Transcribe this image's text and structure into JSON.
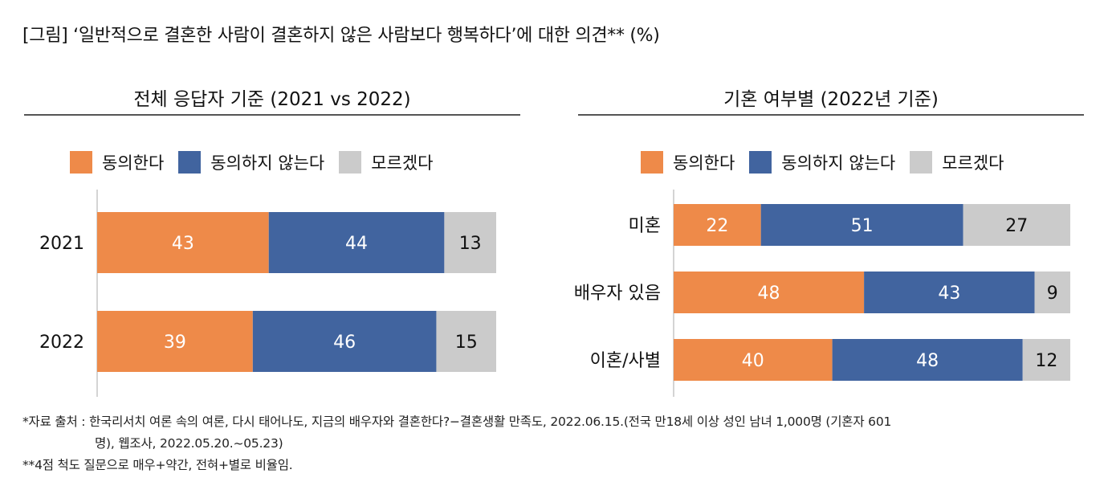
{
  "title": "[그림] ‘일반적으로 결혼한 사람이 결혼하지 않은 사람보다 행복하다’에 대한 의견** (%)",
  "colors": {
    "agree": "#EE8A49",
    "disagree": "#41649F",
    "unknown": "#CBCBCB"
  },
  "legend": [
    "동의한다",
    "동의하지 않는다",
    "모르겠다"
  ],
  "chart_data": [
    {
      "type": "bar",
      "orientation": "horizontal",
      "stacked": true,
      "title": "전체 응답자 기준 (2021 vs 2022)",
      "categories": [
        "2021",
        "2022"
      ],
      "series": [
        {
          "name": "동의한다",
          "values": [
            43,
            39
          ]
        },
        {
          "name": "동의하지 않는다",
          "values": [
            44,
            46
          ]
        },
        {
          "name": "모르겠다",
          "values": [
            13,
            15
          ]
        }
      ],
      "xlim": [
        0,
        100
      ],
      "unit": "%"
    },
    {
      "type": "bar",
      "orientation": "horizontal",
      "stacked": true,
      "title": "기혼 여부별 (2022년 기준)",
      "categories": [
        "미혼",
        "배우자 있음",
        "이혼/사별"
      ],
      "series": [
        {
          "name": "동의한다",
          "values": [
            22,
            48,
            40
          ]
        },
        {
          "name": "동의하지 않는다",
          "values": [
            51,
            43,
            48
          ]
        },
        {
          "name": "모르겠다",
          "values": [
            27,
            9,
            12
          ]
        }
      ],
      "xlim": [
        0,
        100
      ],
      "unit": "%"
    }
  ],
  "footnotes": {
    "source_line1": "*자료 출처 : 한국리서치 여론 속의 여론, 다시 태어나도, 지금의 배우자와 결혼한다?−결혼생활 만족도, 2022.06.15.(전국 만18세 이상 성인 남녀 1,000명 (기혼자 601",
    "source_line2": "명), 웹조사, 2022.05.20.~05.23)",
    "note": "**4점 척도 질문으로 매우+약간, 전혀+별로 비율임."
  }
}
